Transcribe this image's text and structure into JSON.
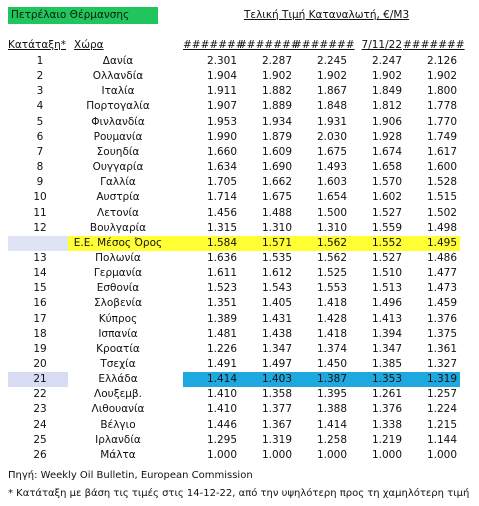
{
  "title": "Πετρέλαιο Θέρμανσης",
  "subtitle": "Τελική Τιμή Καταναλωτή, €/Μ3",
  "headers": {
    "rank": "Κατάταξη*",
    "country": "Χώρα",
    "cols": [
      "#######",
      "#######",
      "#######",
      "7/11/22",
      "#######"
    ]
  },
  "rows": [
    {
      "rank": "1",
      "country": "Δανία",
      "v": [
        "2.301",
        "2.287",
        "2.245",
        "2.247",
        "2.126"
      ]
    },
    {
      "rank": "2",
      "country": "Ολλανδία",
      "v": [
        "1.904",
        "1.902",
        "1.902",
        "1.902",
        "1.902"
      ]
    },
    {
      "rank": "3",
      "country": "Ιταλία",
      "v": [
        "1.911",
        "1.882",
        "1.867",
        "1.849",
        "1.800"
      ]
    },
    {
      "rank": "4",
      "country": "Πορτογαλία",
      "v": [
        "1.907",
        "1.889",
        "1.848",
        "1.812",
        "1.778"
      ]
    },
    {
      "rank": "5",
      "country": "Φινλανδία",
      "v": [
        "1.953",
        "1.934",
        "1.931",
        "1.906",
        "1.770"
      ]
    },
    {
      "rank": "6",
      "country": "Ρουμανία",
      "v": [
        "1.990",
        "1.879",
        "2.030",
        "1.928",
        "1.749"
      ]
    },
    {
      "rank": "7",
      "country": "Σουηδία",
      "v": [
        "1.660",
        "1.609",
        "1.675",
        "1.674",
        "1.617"
      ]
    },
    {
      "rank": "8",
      "country": "Ουγγαρία",
      "v": [
        "1.634",
        "1.690",
        "1.493",
        "1.658",
        "1.600"
      ]
    },
    {
      "rank": "9",
      "country": "Γαλλία",
      "v": [
        "1.705",
        "1.662",
        "1.603",
        "1.570",
        "1.528"
      ]
    },
    {
      "rank": "10",
      "country": "Αυστρία",
      "v": [
        "1.714",
        "1.675",
        "1.654",
        "1.602",
        "1.515"
      ]
    },
    {
      "rank": "11",
      "country": "Λετονία",
      "v": [
        "1.456",
        "1.488",
        "1.500",
        "1.527",
        "1.502"
      ]
    },
    {
      "rank": "12",
      "country": "Βουλγαρία",
      "v": [
        "1.315",
        "1.310",
        "1.310",
        "1.559",
        "1.498"
      ]
    },
    {
      "rank": "",
      "country": "Ε.Ε. Μέσος Όρος",
      "v": [
        "1.584",
        "1.571",
        "1.562",
        "1.552",
        "1.495"
      ],
      "highlight": "avg"
    },
    {
      "rank": "13",
      "country": "Πολωνία",
      "v": [
        "1.636",
        "1.535",
        "1.562",
        "1.527",
        "1.486"
      ]
    },
    {
      "rank": "14",
      "country": "Γερμανία",
      "v": [
        "1.611",
        "1.612",
        "1.525",
        "1.510",
        "1.477"
      ]
    },
    {
      "rank": "15",
      "country": "Εσθονία",
      "v": [
        "1.523",
        "1.543",
        "1.553",
        "1.513",
        "1.473"
      ]
    },
    {
      "rank": "16",
      "country": "Σλοβενία",
      "v": [
        "1.351",
        "1.405",
        "1.418",
        "1.496",
        "1.459"
      ]
    },
    {
      "rank": "17",
      "country": "Κύπρος",
      "v": [
        "1.389",
        "1.431",
        "1.428",
        "1.413",
        "1.376"
      ]
    },
    {
      "rank": "18",
      "country": "Ισπανία",
      "v": [
        "1.481",
        "1.438",
        "1.418",
        "1.394",
        "1.375"
      ]
    },
    {
      "rank": "19",
      "country": "Κροατία",
      "v": [
        "1.226",
        "1.347",
        "1.374",
        "1.347",
        "1.361"
      ]
    },
    {
      "rank": "20",
      "country": "Τσεχία",
      "v": [
        "1.491",
        "1.497",
        "1.450",
        "1.385",
        "1.327"
      ]
    },
    {
      "rank": "21",
      "country": "Ελλάδα",
      "v": [
        "1.414",
        "1.403",
        "1.387",
        "1.353",
        "1.319"
      ],
      "highlight": "greece"
    },
    {
      "rank": "22",
      "country": "Λουξεμβ.",
      "v": [
        "1.410",
        "1.358",
        "1.395",
        "1.261",
        "1.257"
      ]
    },
    {
      "rank": "23",
      "country": "Λιθουανία",
      "v": [
        "1.410",
        "1.377",
        "1.388",
        "1.376",
        "1.224"
      ]
    },
    {
      "rank": "24",
      "country": "Βέλγιο",
      "v": [
        "1.446",
        "1.367",
        "1.414",
        "1.338",
        "1.215"
      ]
    },
    {
      "rank": "25",
      "country": "Ιρλανδία",
      "v": [
        "1.295",
        "1.319",
        "1.258",
        "1.219",
        "1.144"
      ]
    },
    {
      "rank": "26",
      "country": "Μάλτα",
      "v": [
        "1.000",
        "1.000",
        "1.000",
        "1.000",
        "1.000"
      ]
    }
  ],
  "colors": {
    "title_bg": "#21c55e",
    "avg_band": "#ffff33",
    "greece_band": "#1ea8e0",
    "greece_rank_band": "#d7dcf2",
    "avg_rank_band": "#dfe3f6"
  },
  "notes": {
    "source": "Πηγή: Weekly Oil Bulletin, European Commission",
    "footnote": "* Κατάταξη με βάση τις τιμές στις 14-12-22, από την υψηλότερη προς τη χαμηλότερη τιμή"
  }
}
